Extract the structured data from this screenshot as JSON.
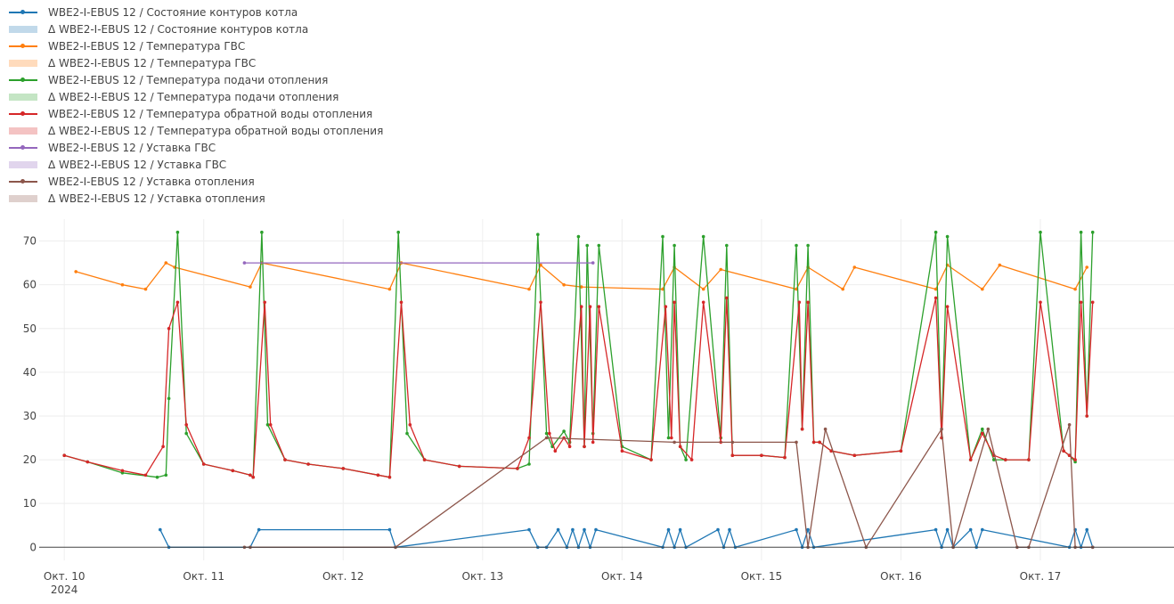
{
  "legend": {
    "items": [
      {
        "label": "WBE2-I-EBUS 12 / Состояние контуров котла",
        "color": "#1f77b4",
        "kind": "line"
      },
      {
        "label": "Δ WBE2-I-EBUS 12 / Состояние контуров котла",
        "color": "#1f77b4",
        "kind": "band"
      },
      {
        "label": "WBE2-I-EBUS 12 / Температура ГВС",
        "color": "#ff7f0e",
        "kind": "line"
      },
      {
        "label": "Δ WBE2-I-EBUS 12 / Температура ГВС",
        "color": "#ff7f0e",
        "kind": "band"
      },
      {
        "label": "WBE2-I-EBUS 12 / Температура подачи отопления",
        "color": "#2ca02c",
        "kind": "line"
      },
      {
        "label": "Δ WBE2-I-EBUS 12 / Температура подачи отопления",
        "color": "#2ca02c",
        "kind": "band"
      },
      {
        "label": "WBE2-I-EBUS 12 / Температура обратной воды отопления",
        "color": "#d62728",
        "kind": "line"
      },
      {
        "label": "Δ WBE2-I-EBUS 12 / Температура обратной воды отопления",
        "color": "#d62728",
        "kind": "band"
      },
      {
        "label": "WBE2-I-EBUS 12 / Уставка ГВС",
        "color": "#9467bd",
        "kind": "line"
      },
      {
        "label": "Δ WBE2-I-EBUS 12 / Уставка ГВС",
        "color": "#9467bd",
        "kind": "band"
      },
      {
        "label": "WBE2-I-EBUS 12 / Уставка отопления",
        "color": "#8c564b",
        "kind": "line"
      },
      {
        "label": "Δ WBE2-I-EBUS 12 / Уставка отопления",
        "color": "#8c564b",
        "kind": "band"
      }
    ]
  },
  "chart_data": {
    "type": "line",
    "x_axis": {
      "type": "date",
      "range": [
        "2024-10-09T16:00",
        "2024-10-17T23:00"
      ],
      "ticks": [
        {
          "date": "2024-10-10",
          "label": "Окт. 10",
          "sublabel": "2024"
        },
        {
          "date": "2024-10-11",
          "label": "Окт. 11",
          "sublabel": ""
        },
        {
          "date": "2024-10-12",
          "label": "Окт. 12",
          "sublabel": ""
        },
        {
          "date": "2024-10-13",
          "label": "Окт. 13",
          "sublabel": ""
        },
        {
          "date": "2024-10-14",
          "label": "Окт. 14",
          "sublabel": ""
        },
        {
          "date": "2024-10-15",
          "label": "Окт. 15",
          "sublabel": ""
        },
        {
          "date": "2024-10-16",
          "label": "Окт. 16",
          "sublabel": ""
        },
        {
          "date": "2024-10-17",
          "label": "Окт. 17",
          "sublabel": ""
        }
      ]
    },
    "y_axis": {
      "range": [
        -3,
        75
      ],
      "ticks": [
        0,
        10,
        20,
        30,
        40,
        50,
        60,
        70
      ]
    },
    "grid": true,
    "series": [
      {
        "name": "WBE2-I-EBUS 12 / Состояние контуров котла",
        "color": "#1f77b4",
        "x": [
          "2024-10-10T16:30",
          "2024-10-10T18:00",
          "2024-10-11T08:00",
          "2024-10-11T09:30",
          "2024-10-12T08:00",
          "2024-10-12T09:00",
          "2024-10-13T08:00",
          "2024-10-13T09:30",
          "2024-10-13T11:00",
          "2024-10-13T13:00",
          "2024-10-13T14:30",
          "2024-10-13T15:30",
          "2024-10-13T16:30",
          "2024-10-13T17:30",
          "2024-10-13T18:30",
          "2024-10-13T19:30",
          "2024-10-14T07:00",
          "2024-10-14T08:00",
          "2024-10-14T09:00",
          "2024-10-14T10:00",
          "2024-10-14T11:00",
          "2024-10-14T16:30",
          "2024-10-14T17:30",
          "2024-10-14T18:30",
          "2024-10-14T19:30",
          "2024-10-15T06:00",
          "2024-10-15T07:00",
          "2024-10-15T08:00",
          "2024-10-15T09:00",
          "2024-10-16T06:00",
          "2024-10-16T07:00",
          "2024-10-16T08:00",
          "2024-10-16T09:00",
          "2024-10-16T12:00",
          "2024-10-16T13:00",
          "2024-10-16T14:00",
          "2024-10-17T05:00",
          "2024-10-17T06:00",
          "2024-10-17T07:00",
          "2024-10-17T08:00",
          "2024-10-17T09:00"
        ],
        "y": [
          4,
          0,
          0,
          4,
          4,
          0,
          4,
          0,
          0,
          4,
          0,
          4,
          0,
          4,
          0,
          4,
          0,
          4,
          0,
          4,
          0,
          4,
          0,
          4,
          0,
          4,
          0,
          4,
          0,
          4,
          0,
          4,
          0,
          4,
          0,
          4,
          0,
          4,
          0,
          4,
          0
        ]
      },
      {
        "name": "WBE2-I-EBUS 12 / Температура ГВС",
        "color": "#ff7f0e",
        "x": [
          "2024-10-10T02:00",
          "2024-10-10T10:00",
          "2024-10-10T14:00",
          "2024-10-10T17:30",
          "2024-10-10T19:00",
          "2024-10-11T08:00",
          "2024-10-11T10:00",
          "2024-10-12T08:00",
          "2024-10-12T10:00",
          "2024-10-13T08:00",
          "2024-10-13T10:00",
          "2024-10-13T14:00",
          "2024-10-13T17:00",
          "2024-10-14T07:00",
          "2024-10-14T09:00",
          "2024-10-14T14:00",
          "2024-10-14T17:00",
          "2024-10-15T06:00",
          "2024-10-15T08:00",
          "2024-10-15T14:00",
          "2024-10-15T16:00",
          "2024-10-16T06:00",
          "2024-10-16T08:00",
          "2024-10-16T14:00",
          "2024-10-16T17:00",
          "2024-10-17T06:00",
          "2024-10-17T08:00"
        ],
        "y": [
          63,
          60,
          59,
          65,
          64,
          59.5,
          65,
          59,
          65,
          59,
          64.5,
          60,
          59.5,
          59,
          64,
          59,
          63.5,
          59,
          64,
          59,
          64,
          59,
          64.5,
          59,
          64.5,
          59,
          64
        ]
      },
      {
        "name": "WBE2-I-EBUS 12 / Температура подачи отопления",
        "color": "#2ca02c",
        "x": [
          "2024-10-10T00:00",
          "2024-10-10T04:00",
          "2024-10-10T10:00",
          "2024-10-10T16:00",
          "2024-10-10T17:30",
          "2024-10-10T18:00",
          "2024-10-10T19:30",
          "2024-10-10T21:00",
          "2024-10-11T00:00",
          "2024-10-11T05:00",
          "2024-10-11T08:00",
          "2024-10-11T08:30",
          "2024-10-11T10:00",
          "2024-10-11T11:00",
          "2024-10-11T14:00",
          "2024-10-11T18:00",
          "2024-10-12T00:00",
          "2024-10-12T06:00",
          "2024-10-12T08:00",
          "2024-10-12T09:30",
          "2024-10-12T11:00",
          "2024-10-12T14:00",
          "2024-10-12T20:00",
          "2024-10-13T06:00",
          "2024-10-13T08:00",
          "2024-10-13T09:30",
          "2024-10-13T11:00",
          "2024-10-13T12:00",
          "2024-10-13T14:00",
          "2024-10-13T15:00",
          "2024-10-13T16:30",
          "2024-10-13T17:30",
          "2024-10-13T18:00",
          "2024-10-13T19:00",
          "2024-10-13T20:00",
          "2024-10-14T00:00",
          "2024-10-14T05:00",
          "2024-10-14T07:00",
          "2024-10-14T08:00",
          "2024-10-14T09:00",
          "2024-10-14T10:00",
          "2024-10-14T11:00",
          "2024-10-14T14:00",
          "2024-10-14T17:00",
          "2024-10-14T18:00",
          "2024-10-14T19:00",
          "2024-10-15T00:00",
          "2024-10-15T04:00",
          "2024-10-15T06:00",
          "2024-10-15T07:00",
          "2024-10-15T08:00",
          "2024-10-15T09:00",
          "2024-10-15T10:00",
          "2024-10-15T12:00",
          "2024-10-15T16:00",
          "2024-10-16T00:00",
          "2024-10-16T06:00",
          "2024-10-16T07:00",
          "2024-10-16T08:00",
          "2024-10-16T12:00",
          "2024-10-16T14:00",
          "2024-10-16T16:00",
          "2024-10-16T18:00",
          "2024-10-16T22:00",
          "2024-10-17T00:00",
          "2024-10-17T04:00",
          "2024-10-17T05:00",
          "2024-10-17T06:00",
          "2024-10-17T07:00",
          "2024-10-17T08:00",
          "2024-10-17T09:00"
        ],
        "y": [
          21,
          19.5,
          17,
          16,
          16.5,
          34,
          72,
          26,
          19,
          17.5,
          16.5,
          16,
          72,
          28,
          20,
          19,
          18,
          16.5,
          16,
          72,
          26,
          20,
          18.5,
          18,
          19,
          71.5,
          26,
          23,
          26.5,
          24,
          71,
          23,
          69,
          26,
          69,
          23,
          20,
          71,
          25,
          69,
          23,
          20,
          71,
          25,
          69,
          21,
          21,
          20.5,
          69,
          27,
          69,
          24,
          24,
          22,
          21,
          22,
          72,
          25,
          71,
          20,
          27,
          20,
          20,
          20,
          72,
          22,
          21,
          19.5,
          72,
          30,
          72
        ]
      },
      {
        "name": "WBE2-I-EBUS 12 / Температура обратной воды отопления",
        "color": "#d62728",
        "x": [
          "2024-10-10T00:00",
          "2024-10-10T04:00",
          "2024-10-10T10:00",
          "2024-10-10T14:00",
          "2024-10-10T17:00",
          "2024-10-10T18:00",
          "2024-10-10T19:30",
          "2024-10-10T21:00",
          "2024-10-11T00:00",
          "2024-10-11T05:00",
          "2024-10-11T08:00",
          "2024-10-11T08:30",
          "2024-10-11T10:30",
          "2024-10-11T11:30",
          "2024-10-11T14:00",
          "2024-10-11T18:00",
          "2024-10-12T00:00",
          "2024-10-12T06:00",
          "2024-10-12T08:00",
          "2024-10-12T10:00",
          "2024-10-12T11:30",
          "2024-10-12T14:00",
          "2024-10-12T20:00",
          "2024-10-13T06:00",
          "2024-10-13T08:00",
          "2024-10-13T10:00",
          "2024-10-13T11:30",
          "2024-10-13T12:30",
          "2024-10-13T14:00",
          "2024-10-13T15:00",
          "2024-10-13T17:00",
          "2024-10-13T17:30",
          "2024-10-13T18:30",
          "2024-10-13T19:00",
          "2024-10-13T20:00",
          "2024-10-14T00:00",
          "2024-10-14T05:00",
          "2024-10-14T07:30",
          "2024-10-14T08:30",
          "2024-10-14T09:00",
          "2024-10-14T10:00",
          "2024-10-14T12:00",
          "2024-10-14T14:00",
          "2024-10-14T17:00",
          "2024-10-14T18:00",
          "2024-10-14T19:00",
          "2024-10-15T00:00",
          "2024-10-15T04:00",
          "2024-10-15T06:30",
          "2024-10-15T07:00",
          "2024-10-15T08:00",
          "2024-10-15T09:00",
          "2024-10-15T10:00",
          "2024-10-15T12:00",
          "2024-10-15T16:00",
          "2024-10-16T00:00",
          "2024-10-16T06:00",
          "2024-10-16T07:00",
          "2024-10-16T08:00",
          "2024-10-16T12:00",
          "2024-10-16T14:00",
          "2024-10-16T16:00",
          "2024-10-16T18:00",
          "2024-10-16T22:00",
          "2024-10-17T00:00",
          "2024-10-17T04:00",
          "2024-10-17T05:00",
          "2024-10-17T06:00",
          "2024-10-17T07:00",
          "2024-10-17T08:00",
          "2024-10-17T09:00"
        ],
        "y": [
          21,
          19.5,
          17.5,
          16.5,
          23,
          50,
          56,
          28,
          19,
          17.5,
          16.5,
          16,
          56,
          28,
          20,
          19,
          18,
          16.5,
          16,
          56,
          28,
          20,
          18.5,
          18,
          25,
          56,
          26,
          22,
          25,
          23,
          55,
          23,
          55,
          24,
          55,
          22,
          20,
          55,
          25,
          56,
          23,
          20,
          56,
          24,
          57,
          21,
          21,
          20.5,
          56,
          27,
          56,
          24,
          24,
          22,
          21,
          22,
          57,
          25,
          55,
          20,
          26,
          21,
          20,
          20,
          56,
          22,
          21,
          20,
          56,
          30,
          56
        ]
      },
      {
        "name": "WBE2-I-EBUS 12 / Уставка ГВС",
        "color": "#9467bd",
        "x": [
          "2024-10-11T07:00",
          "2024-10-13T19:00"
        ],
        "y": [
          65,
          65
        ]
      },
      {
        "name": "WBE2-I-EBUS 12 / Уставка отопления",
        "color": "#8c564b",
        "x": [
          "2024-10-11T07:00",
          "2024-10-11T08:00",
          "2024-10-12T09:00",
          "2024-10-13T11:00",
          "2024-10-14T09:00",
          "2024-10-14T19:00",
          "2024-10-15T06:00",
          "2024-10-15T08:00",
          "2024-10-15T11:00",
          "2024-10-15T18:00",
          "2024-10-16T07:00",
          "2024-10-16T09:00",
          "2024-10-16T15:00",
          "2024-10-16T20:00",
          "2024-10-16T22:00",
          "2024-10-17T05:00",
          "2024-10-17T06:00",
          "2024-10-17T09:00"
        ],
        "y": [
          0,
          0,
          0,
          25,
          24,
          24,
          24,
          0,
          27,
          0,
          27,
          0,
          27,
          0,
          0,
          28,
          0,
          0
        ]
      }
    ]
  }
}
